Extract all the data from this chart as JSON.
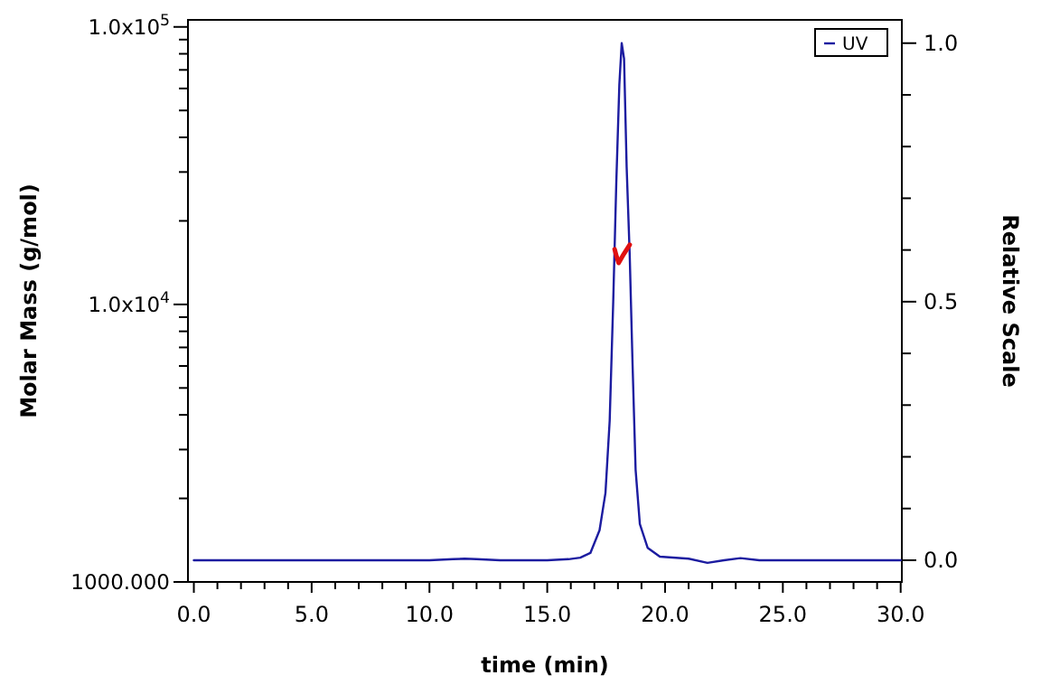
{
  "chart_data": {
    "type": "line",
    "xlabel": "time (min)",
    "ylabel": "Molar Mass (g/mol)",
    "y2label": "Relative Scale",
    "xlim": [
      -0.25,
      30.05
    ],
    "xticks": [
      {
        "value": 0,
        "label": "0.0"
      },
      {
        "value": 1,
        "label": null
      },
      {
        "value": 2,
        "label": null
      },
      {
        "value": 3,
        "label": null
      },
      {
        "value": 4,
        "label": null
      },
      {
        "value": 5,
        "label": "5.0"
      },
      {
        "value": 6,
        "label": null
      },
      {
        "value": 7,
        "label": null
      },
      {
        "value": 8,
        "label": null
      },
      {
        "value": 9,
        "label": null
      },
      {
        "value": 10,
        "label": "10.0"
      },
      {
        "value": 11,
        "label": null
      },
      {
        "value": 12,
        "label": null
      },
      {
        "value": 13,
        "label": null
      },
      {
        "value": 14,
        "label": null
      },
      {
        "value": 15,
        "label": "15.0"
      },
      {
        "value": 16,
        "label": null
      },
      {
        "value": 17,
        "label": null
      },
      {
        "value": 18,
        "label": null
      },
      {
        "value": 19,
        "label": null
      },
      {
        "value": 20,
        "label": "20.0"
      },
      {
        "value": 21,
        "label": null
      },
      {
        "value": 22,
        "label": null
      },
      {
        "value": 23,
        "label": null
      },
      {
        "value": 24,
        "label": null
      },
      {
        "value": 25,
        "label": "25.0"
      },
      {
        "value": 26,
        "label": null
      },
      {
        "value": 27,
        "label": null
      },
      {
        "value": 28,
        "label": null
      },
      {
        "value": 29,
        "label": null
      },
      {
        "value": 30,
        "label": "30.0"
      }
    ],
    "ylim": [
      1000,
      106000
    ],
    "yticks": [
      {
        "value": 1000,
        "label": "1000.000"
      },
      {
        "value": 2000,
        "label": null
      },
      {
        "value": 3000,
        "label": null
      },
      {
        "value": 4000,
        "label": null
      },
      {
        "value": 5000,
        "label": null
      },
      {
        "value": 6000,
        "label": null
      },
      {
        "value": 7000,
        "label": null
      },
      {
        "value": 8000,
        "label": null
      },
      {
        "value": 9000,
        "label": null
      },
      {
        "value": 10000,
        "label": "1.0x10$^{4}$"
      },
      {
        "value": 20000,
        "label": null
      },
      {
        "value": 30000,
        "label": null
      },
      {
        "value": 40000,
        "label": null
      },
      {
        "value": 50000,
        "label": null
      },
      {
        "value": 60000,
        "label": null
      },
      {
        "value": 70000,
        "label": null
      },
      {
        "value": 80000,
        "label": null
      },
      {
        "value": 90000,
        "label": null
      },
      {
        "value": 100000,
        "label": "1.0x10$^{5}$"
      }
    ],
    "y2lim": [
      -0.042,
      1.045
    ],
    "y2ticks": [
      {
        "value": 0,
        "label": "0.0"
      },
      {
        "value": 0.1,
        "label": null
      },
      {
        "value": 0.2,
        "label": null
      },
      {
        "value": 0.3,
        "label": null
      },
      {
        "value": 0.4,
        "label": null
      },
      {
        "value": 0.5,
        "label": "0.5"
      },
      {
        "value": 0.6,
        "label": null
      },
      {
        "value": 0.7,
        "label": null
      },
      {
        "value": 0.8,
        "label": null
      },
      {
        "value": 0.9,
        "label": null
      },
      {
        "value": 1,
        "label": "1.0"
      }
    ],
    "log": "y",
    "grid": false,
    "legend": "top right",
    "marker": "none",
    "line_style": "solid",
    "series": [
      {
        "name": "UV",
        "color": "#1c1ca0",
        "axis": "y2",
        "x": [
          0,
          5,
          10,
          11,
          11.5,
          12,
          13,
          15,
          15.9,
          16.4,
          16.83,
          17.22,
          17.47,
          17.65,
          17.8,
          17.93,
          18.06,
          18.16,
          18.26,
          18.37,
          18.5,
          18.62,
          18.75,
          18.93,
          19.26,
          19.78,
          21,
          21.8,
          22.5,
          23.2,
          24,
          30
        ],
        "values": [
          0,
          0,
          0,
          0.002,
          0.003,
          0.002,
          0,
          0,
          0.002,
          0.005,
          0.014,
          0.058,
          0.13,
          0.27,
          0.5,
          0.73,
          0.92,
          1.0,
          0.97,
          0.76,
          0.59,
          0.38,
          0.175,
          0.07,
          0.024,
          0.007,
          0.003,
          -0.005,
          0,
          0.004,
          0,
          0
        ]
      },
      {
        "color": "#e01010",
        "axis": "y",
        "x": [
          17.86,
          17.95,
          18.03,
          18.25,
          18.5
        ],
        "values": [
          15800,
          14800,
          14100,
          15200,
          16400
        ]
      }
    ]
  }
}
